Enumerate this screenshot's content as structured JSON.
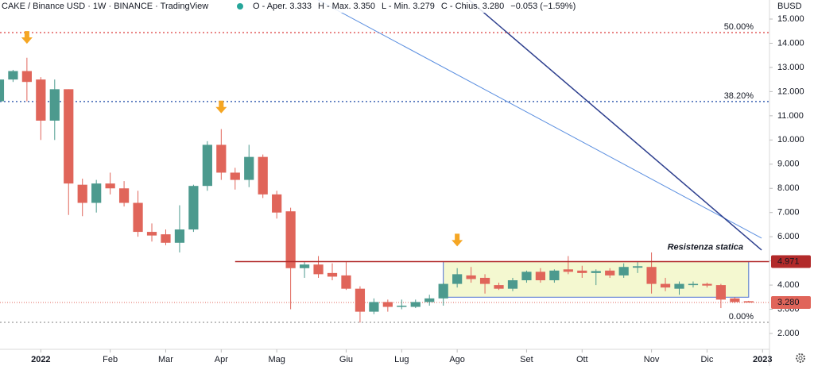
{
  "chart_data": {
    "type": "candlestick",
    "title": "CAKE / Binance USD · 1W · BINANCE · TradingView",
    "legend": [
      {
        "label": "O - Aper.",
        "value": "3.333"
      },
      {
        "label": "H - Max.",
        "value": "3.350"
      },
      {
        "label": "L - Min.",
        "value": "3.279"
      },
      {
        "label": "C - Chius.",
        "value": "3.280"
      }
    ],
    "change": "−0.053 (−1.59%)",
    "y_axis_label": "BUSD",
    "up_color": "#4c9a8e",
    "down_color": "#e0655a",
    "open": [
      11.6,
      12.5,
      12.85,
      12.5,
      10.8,
      12.1,
      8.15,
      7.4,
      8.2,
      8.0,
      7.4,
      6.2,
      6.1,
      5.75,
      6.3,
      8.1,
      9.8,
      8.65,
      8.35,
      9.3,
      7.75,
      7.05,
      4.7,
      4.85,
      4.5,
      4.4,
      3.85,
      2.9,
      3.3,
      3.1,
      3.1,
      3.3,
      3.45,
      4.05,
      4.4,
      4.3,
      4.0,
      3.85,
      4.2,
      4.55,
      4.2,
      4.65,
      4.6,
      4.5,
      4.6,
      4.4,
      4.72,
      4.75,
      4.05,
      3.85,
      4.0,
      4.05,
      4.0,
      3.45,
      3.333
    ],
    "high": [
      12.6,
      12.9,
      13.4,
      12.6,
      12.5,
      12.1,
      8.4,
      8.35,
      8.65,
      8.3,
      7.9,
      6.55,
      6.3,
      7.3,
      8.15,
      9.95,
      10.45,
      8.85,
      9.8,
      9.4,
      7.9,
      7.2,
      4.95,
      5.2,
      4.9,
      4.95,
      3.95,
      3.45,
      3.4,
      3.4,
      3.4,
      3.6,
      4.1,
      4.7,
      4.75,
      4.45,
      4.1,
      4.3,
      4.6,
      4.7,
      4.65,
      5.2,
      4.8,
      4.65,
      4.7,
      4.9,
      4.95,
      5.35,
      4.3,
      4.15,
      4.15,
      4.1,
      4.05,
      3.5,
      3.35
    ],
    "low": [
      11.5,
      12.4,
      11.6,
      10.0,
      10.0,
      6.9,
      6.85,
      7.0,
      7.75,
      7.25,
      6.0,
      5.8,
      5.65,
      5.35,
      6.2,
      7.9,
      8.35,
      7.95,
      8.05,
      7.6,
      6.75,
      3.0,
      4.3,
      4.3,
      4.2,
      3.8,
      2.45,
      2.8,
      2.9,
      3.0,
      3.05,
      3.15,
      3.15,
      3.9,
      4.1,
      3.65,
      3.8,
      3.75,
      4.1,
      4.1,
      4.1,
      4.45,
      4.3,
      4.0,
      4.3,
      4.3,
      4.5,
      3.65,
      3.75,
      3.6,
      3.9,
      3.9,
      3.05,
      3.25,
      3.279
    ],
    "close": [
      12.5,
      12.85,
      12.4,
      10.8,
      12.1,
      8.2,
      7.4,
      8.2,
      8.0,
      7.4,
      6.2,
      6.05,
      5.75,
      6.3,
      8.1,
      9.8,
      8.65,
      8.35,
      9.3,
      7.75,
      7.0,
      4.7,
      4.85,
      4.45,
      4.35,
      3.85,
      2.9,
      3.3,
      3.1,
      3.15,
      3.3,
      3.45,
      4.05,
      4.45,
      4.25,
      4.05,
      3.85,
      4.2,
      4.55,
      4.2,
      4.6,
      4.55,
      4.5,
      4.58,
      4.4,
      4.75,
      4.78,
      4.05,
      3.9,
      4.05,
      4.05,
      3.98,
      3.4,
      3.3,
      3.28
    ],
    "xlim": [
      0.06,
      55.5
    ],
    "xticks": [
      {
        "value": 3,
        "label": "2022"
      },
      {
        "value": 8,
        "label": "Feb"
      },
      {
        "value": 12,
        "label": "Mar"
      },
      {
        "value": 16,
        "label": "Apr"
      },
      {
        "value": 20,
        "label": "Mag"
      },
      {
        "value": 25,
        "label": "Giu"
      },
      {
        "value": 29,
        "label": "Lug"
      },
      {
        "value": 33,
        "label": "Ago"
      },
      {
        "value": 38,
        "label": "Set"
      },
      {
        "value": 42,
        "label": "Ott"
      },
      {
        "value": 47,
        "label": "Nov"
      },
      {
        "value": 51,
        "label": "Dic"
      },
      {
        "value": 55,
        "label": "2023"
      }
    ],
    "ylim": [
      1.344,
      15.788
    ],
    "yticks": [
      {
        "value": 2,
        "label": "2.000"
      },
      {
        "value": 3,
        "label": "3.000"
      },
      {
        "value": 4,
        "label": "4.000"
      },
      {
        "value": 5,
        "label": "5.000"
      },
      {
        "value": 6,
        "label": "6.000"
      },
      {
        "value": 7,
        "label": "7.000"
      },
      {
        "value": 8,
        "label": "8.000"
      },
      {
        "value": 9,
        "label": "9.000"
      },
      {
        "value": 10,
        "label": "10.000"
      },
      {
        "value": 11,
        "label": "11.000"
      },
      {
        "value": 12,
        "label": "12.000"
      },
      {
        "value": 13,
        "label": "13.000"
      },
      {
        "value": 14,
        "label": "14.000"
      },
      {
        "value": 15,
        "label": "15.000"
      }
    ],
    "grid": false,
    "levels": [
      {
        "label": "50.00%",
        "value": 14.44,
        "color": "#e05a5a"
      },
      {
        "label": "38.20%",
        "value": 11.59,
        "color": "#3f66b5"
      },
      {
        "label": "0.00%",
        "value": 2.46,
        "color": "#aaaaaa"
      }
    ],
    "resistance": {
      "label": "Resistenza statica",
      "value": 4.971,
      "price_label": "4.971",
      "color": "#b22a2a",
      "start": 17.0
    },
    "last_price": {
      "value": 3.28,
      "price_label": "3.280",
      "color": "#e0655a"
    },
    "range_box": {
      "x": [
        32,
        54
      ],
      "y": [
        3.5,
        4.97
      ]
    },
    "trendlines": [
      {
        "from": [
          22.97,
          15.79
        ],
        "to": [
          54.93,
          5.94
        ],
        "color": "#5b8fe0"
      },
      {
        "from": [
          33.85,
          15.79
        ],
        "to": [
          54.93,
          5.45
        ],
        "color": "#2d3f8e"
      }
    ],
    "markers": [
      {
        "x": 2,
        "value": 13.98
      },
      {
        "x": 16,
        "value": 11.1
      },
      {
        "x": 33,
        "value": 5.6
      }
    ]
  }
}
